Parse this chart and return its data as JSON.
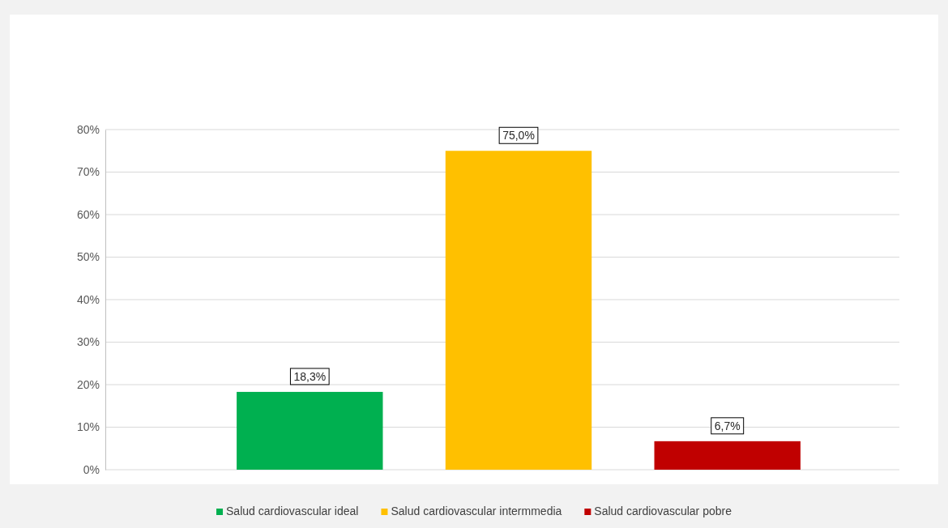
{
  "chart_data": {
    "type": "bar",
    "categories": [
      null
    ],
    "series": [
      {
        "name": "Salud cardiovascular ideal",
        "color": "#00b050",
        "values": [
          18.3
        ],
        "value_labels": [
          "18,3%"
        ]
      },
      {
        "name": "Salud cardiovascular intermmedia",
        "color": "#ffc000",
        "values": [
          75.0
        ],
        "value_labels": [
          "75,0%"
        ]
      },
      {
        "name": "Salud cardiovascular pobre",
        "color": "#c00000",
        "values": [
          6.7
        ],
        "value_labels": [
          "6,7%"
        ]
      }
    ],
    "ylim": [
      0,
      80
    ],
    "yticks": [
      {
        "value": 0,
        "label": "0%"
      },
      {
        "value": 10,
        "label": "10%"
      },
      {
        "value": 20,
        "label": "20%"
      },
      {
        "value": 30,
        "label": "30%"
      },
      {
        "value": 40,
        "label": "40%"
      },
      {
        "value": 50,
        "label": "50%"
      },
      {
        "value": 60,
        "label": "60%"
      },
      {
        "value": 70,
        "label": "70%"
      },
      {
        "value": 80,
        "label": "80%"
      }
    ],
    "grid": "y",
    "legend": "bottom"
  }
}
